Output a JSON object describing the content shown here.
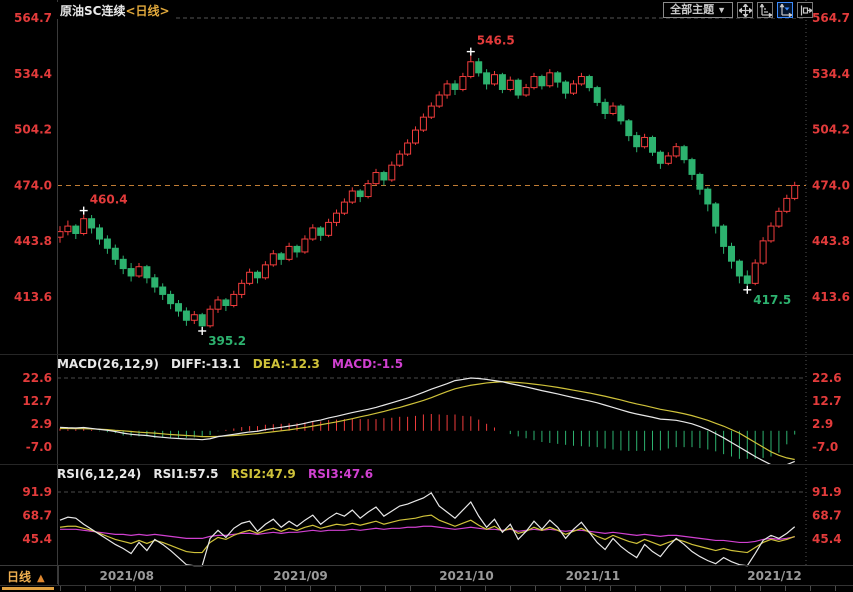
{
  "header": {
    "title": "原油SC连续",
    "period_tag": "<日线>"
  },
  "toolbar": {
    "themes_label": "全部主题",
    "themes_caret": "▼",
    "icons": [
      "move-icon",
      "axis-scale-icon",
      "axis-latest-icon",
      "exit-right-icon"
    ]
  },
  "macd_panel": {
    "name": "MACD(26,12,9)",
    "diff_label": "DIFF:-13.1",
    "dea_label": "DEA:-12.3",
    "macd_label": "MACD:-1.5"
  },
  "rsi_panel": {
    "name": "RSI(6,12,24)",
    "rsi1_label": "RSI1:57.5",
    "rsi2_label": "RSI2:47.9",
    "rsi3_label": "RSI3:47.6"
  },
  "bottom_bar": {
    "tab_label": "日线",
    "tab_caret": "▲"
  },
  "colors": {
    "up": "#f03c3c",
    "down": "#2db26f",
    "axis_text": "#e23b3b",
    "diff_line": "#e8e8e8",
    "dea_line": "#cfc23a",
    "rsi1": "#e8e8e8",
    "rsi2": "#cfc23a",
    "rsi3": "#d040d0",
    "last_price_line": "#c07c34",
    "grid_dash": "#555555",
    "date_text": "#999999",
    "annotation_high": "#e23b3b",
    "annotation_low": "#2db26f",
    "cross_marker": "#ffffff"
  },
  "chart_data": {
    "type": "candlestick",
    "title": "原油SC连续 日线 (crude oil SC continuous, daily)",
    "panels": [
      "price",
      "MACD",
      "RSI"
    ],
    "price_axis": {
      "ticks": [
        564.7,
        534.4,
        504.2,
        474.0,
        443.8,
        413.6
      ],
      "last_price": 474.0
    },
    "macd_axis": {
      "ticks": [
        22.6,
        12.7,
        2.9,
        -7.0
      ]
    },
    "rsi_axis": {
      "ticks": [
        91.9,
        68.7,
        45.4
      ]
    },
    "x_axis": {
      "month_labels": [
        "2021/08",
        "2021/09",
        "2021/10",
        "2021/11",
        "2021/12"
      ],
      "month_start_indices": [
        5,
        27,
        48,
        64,
        87
      ]
    },
    "annotations": [
      {
        "index": 3,
        "price": 460.4,
        "kind": "high",
        "label": "460.4"
      },
      {
        "index": 18,
        "price": 395.2,
        "kind": "low",
        "label": "395.2"
      },
      {
        "index": 52,
        "price": 546.5,
        "kind": "high",
        "label": "546.5"
      },
      {
        "index": 87,
        "price": 417.5,
        "kind": "low",
        "label": "417.5"
      }
    ],
    "candles": [
      [
        446,
        452,
        443,
        449
      ],
      [
        449,
        455,
        447,
        452
      ],
      [
        452,
        453,
        445,
        448
      ],
      [
        448,
        460.4,
        447,
        456
      ],
      [
        456,
        458,
        448,
        451
      ],
      [
        451,
        453,
        442,
        445
      ],
      [
        445,
        447,
        437,
        440
      ],
      [
        440,
        442,
        431,
        434
      ],
      [
        434,
        436,
        426,
        429
      ],
      [
        429,
        432,
        422,
        425
      ],
      [
        425,
        432,
        424,
        430
      ],
      [
        430,
        431,
        421,
        424
      ],
      [
        424,
        426,
        416,
        419
      ],
      [
        419,
        421,
        412,
        415
      ],
      [
        415,
        417,
        407,
        410
      ],
      [
        410,
        412,
        403,
        406
      ],
      [
        406,
        408,
        398,
        401
      ],
      [
        401,
        406,
        399,
        404
      ],
      [
        404,
        405,
        395.2,
        398
      ],
      [
        398,
        409,
        397,
        407
      ],
      [
        407,
        414,
        405,
        412
      ],
      [
        412,
        413,
        406,
        409
      ],
      [
        409,
        417,
        408,
        415
      ],
      [
        415,
        423,
        413,
        421
      ],
      [
        421,
        429,
        420,
        427
      ],
      [
        427,
        428,
        421,
        424
      ],
      [
        424,
        433,
        423,
        431
      ],
      [
        431,
        439,
        430,
        437
      ],
      [
        437,
        438,
        431,
        434
      ],
      [
        434,
        443,
        433,
        441
      ],
      [
        441,
        442,
        435,
        438
      ],
      [
        438,
        447,
        437,
        445
      ],
      [
        445,
        453,
        444,
        451
      ],
      [
        451,
        452,
        444,
        447
      ],
      [
        447,
        456,
        446,
        454
      ],
      [
        454,
        461,
        452,
        459
      ],
      [
        459,
        467,
        458,
        465
      ],
      [
        465,
        473,
        464,
        471
      ],
      [
        471,
        472,
        465,
        468
      ],
      [
        468,
        477,
        467,
        475
      ],
      [
        475,
        483,
        474,
        481
      ],
      [
        481,
        482,
        474,
        477
      ],
      [
        477,
        487,
        476,
        485
      ],
      [
        485,
        493,
        484,
        491
      ],
      [
        491,
        499,
        490,
        497
      ],
      [
        497,
        506,
        496,
        504
      ],
      [
        504,
        513,
        503,
        511
      ],
      [
        511,
        519,
        510,
        517
      ],
      [
        517,
        525,
        516,
        523
      ],
      [
        523,
        531,
        521,
        529
      ],
      [
        529,
        531,
        523,
        526
      ],
      [
        526,
        535,
        525,
        533
      ],
      [
        533,
        546.5,
        532,
        541
      ],
      [
        541,
        543,
        533,
        535
      ],
      [
        535,
        537,
        526,
        529
      ],
      [
        529,
        536,
        528,
        534
      ],
      [
        534,
        535,
        524,
        526
      ],
      [
        526,
        533,
        525,
        531
      ],
      [
        531,
        532,
        521,
        523
      ],
      [
        523,
        529,
        522,
        527
      ],
      [
        527,
        535,
        526,
        533
      ],
      [
        533,
        534,
        526,
        528
      ],
      [
        528,
        537,
        527,
        535
      ],
      [
        535,
        536,
        527,
        530
      ],
      [
        530,
        531,
        521,
        524
      ],
      [
        524,
        531,
        523,
        529
      ],
      [
        529,
        535,
        528,
        533
      ],
      [
        533,
        534,
        525,
        527
      ],
      [
        527,
        528,
        517,
        519
      ],
      [
        519,
        521,
        510,
        513
      ],
      [
        513,
        519,
        512,
        517
      ],
      [
        517,
        518,
        507,
        509
      ],
      [
        509,
        510,
        498,
        501
      ],
      [
        501,
        503,
        492,
        495
      ],
      [
        495,
        502,
        494,
        500
      ],
      [
        500,
        501,
        490,
        492
      ],
      [
        492,
        493,
        483,
        486
      ],
      [
        486,
        492,
        485,
        490
      ],
      [
        490,
        497,
        489,
        495
      ],
      [
        495,
        496,
        486,
        488
      ],
      [
        488,
        489,
        477,
        480
      ],
      [
        480,
        481,
        469,
        472
      ],
      [
        472,
        473,
        460,
        464
      ],
      [
        464,
        465,
        448,
        452
      ],
      [
        452,
        453,
        437,
        441
      ],
      [
        441,
        443,
        429,
        433
      ],
      [
        433,
        434,
        421,
        425
      ],
      [
        425,
        428,
        417.5,
        421
      ],
      [
        421,
        434,
        420,
        432
      ],
      [
        432,
        446,
        431,
        444
      ],
      [
        444,
        454,
        443,
        452
      ],
      [
        452,
        462,
        451,
        460
      ],
      [
        460,
        469,
        459,
        467
      ],
      [
        467,
        476,
        466,
        474
      ]
    ],
    "macd": {
      "params": [
        26,
        12,
        9
      ],
      "diff_value": -13.1,
      "dea_value": -12.3,
      "macd_value": -1.5,
      "diff": [
        1.5,
        1.3,
        1.2,
        1.4,
        1.0,
        0.6,
        0.2,
        -0.3,
        -1.0,
        -1.5,
        -1.8,
        -2.0,
        -2.5,
        -2.8,
        -3.1,
        -3.3,
        -3.5,
        -3.6,
        -3.8,
        -3.4,
        -2.5,
        -2.0,
        -1.5,
        -1.0,
        -0.5,
        -0.2,
        0.5,
        1.0,
        1.5,
        2.0,
        2.5,
        3.2,
        4.0,
        4.6,
        5.5,
        6.2,
        7.0,
        7.8,
        8.5,
        9.2,
        10.0,
        11.0,
        12.0,
        13.0,
        14.0,
        15.2,
        16.5,
        17.8,
        19.0,
        20.2,
        21.5,
        22.0,
        22.6,
        22.4,
        22.0,
        21.5,
        21.0,
        20.2,
        19.5,
        18.8,
        18.0,
        17.2,
        16.5,
        15.8,
        15.0,
        14.2,
        13.5,
        12.8,
        12.0,
        11.0,
        10.0,
        9.0,
        8.0,
        7.2,
        6.5,
        5.8,
        5.0,
        4.8,
        4.5,
        3.8,
        3.0,
        1.8,
        0.5,
        -1.2,
        -3.0,
        -5.0,
        -7.0,
        -9.0,
        -11.0,
        -12.8,
        -14.5,
        -15.2,
        -14.5,
        -13.1
      ],
      "dea": [
        1.0,
        1.0,
        0.9,
        0.9,
        0.8,
        0.7,
        0.5,
        0.2,
        0.0,
        -0.3,
        -0.6,
        -0.8,
        -1.0,
        -1.3,
        -1.6,
        -1.8,
        -2.0,
        -2.2,
        -2.5,
        -2.5,
        -2.4,
        -2.2,
        -2.0,
        -1.8,
        -1.5,
        -1.2,
        -0.8,
        -0.4,
        0.0,
        0.4,
        0.9,
        1.4,
        2.0,
        2.6,
        3.2,
        3.8,
        4.5,
        5.2,
        6.0,
        6.7,
        7.5,
        8.3,
        9.2,
        10.0,
        11.0,
        12.0,
        13.0,
        14.2,
        15.5,
        16.8,
        18.0,
        18.8,
        19.5,
        20.0,
        20.5,
        20.8,
        21.0,
        20.9,
        20.7,
        20.4,
        20.0,
        19.6,
        19.1,
        18.6,
        18.0,
        17.4,
        16.8,
        16.2,
        15.5,
        14.8,
        14.0,
        13.2,
        12.3,
        11.5,
        10.8,
        10.0,
        9.2,
        8.6,
        8.0,
        7.3,
        6.5,
        5.5,
        4.5,
        3.2,
        2.0,
        0.5,
        -1.0,
        -3.0,
        -5.0,
        -7.0,
        -9.0,
        -10.5,
        -11.6,
        -12.3
      ]
    },
    "rsi": {
      "params": [
        6,
        12,
        24
      ],
      "rsi1_value": 57.5,
      "rsi2_value": 47.9,
      "rsi3_value": 47.6,
      "r1": [
        64,
        67,
        66,
        60,
        55,
        50,
        45,
        40,
        36,
        31,
        42,
        34,
        45,
        40,
        34,
        27,
        20,
        19,
        19,
        46,
        54,
        47,
        56,
        61,
        63,
        53,
        60,
        65,
        57,
        63,
        58,
        64,
        69,
        60,
        66,
        71,
        68,
        74,
        66,
        72,
        77,
        68,
        73,
        78,
        80,
        83,
        86,
        91,
        78,
        72,
        66,
        74,
        82,
        68,
        57,
        65,
        52,
        60,
        45,
        53,
        63,
        55,
        64,
        57,
        46,
        55,
        62,
        52,
        42,
        35,
        46,
        38,
        32,
        27,
        40,
        33,
        28,
        38,
        46,
        40,
        33,
        28,
        24,
        21,
        27,
        23,
        20,
        19,
        31,
        44,
        49,
        46,
        51,
        57.5
      ],
      "r2": [
        57,
        58,
        58,
        56,
        54,
        51,
        48,
        45,
        43,
        41,
        44,
        41,
        44,
        42,
        39,
        36,
        33,
        32,
        32,
        42,
        47,
        45,
        49,
        52,
        54,
        51,
        54,
        56,
        53,
        56,
        54,
        57,
        59,
        56,
        58,
        60,
        59,
        61,
        59,
        61,
        63,
        60,
        62,
        64,
        65,
        66,
        68,
        69,
        64,
        61,
        58,
        61,
        64,
        59,
        55,
        58,
        53,
        56,
        51,
        53,
        57,
        54,
        57,
        54,
        50,
        53,
        56,
        52,
        48,
        45,
        49,
        46,
        43,
        41,
        45,
        42,
        39,
        42,
        45,
        43,
        40,
        38,
        36,
        34,
        36,
        34,
        33,
        32,
        37,
        42,
        45,
        43,
        45,
        47.9
      ],
      "r3": [
        55,
        55,
        55,
        54,
        53,
        52,
        51,
        50,
        50,
        49,
        50,
        49,
        50,
        49,
        48,
        47,
        46,
        46,
        46,
        48,
        49,
        49,
        50,
        51,
        51,
        50,
        51,
        52,
        51,
        52,
        52,
        53,
        54,
        53,
        54,
        54,
        54,
        55,
        54,
        55,
        56,
        55,
        56,
        56,
        57,
        57,
        58,
        58,
        57,
        56,
        55,
        56,
        57,
        56,
        55,
        55,
        54,
        55,
        53,
        54,
        55,
        54,
        55,
        54,
        53,
        54,
        54,
        53,
        52,
        51,
        52,
        51,
        50,
        49,
        50,
        49,
        48,
        49,
        49,
        48,
        47,
        46,
        45,
        44,
        44,
        43,
        42,
        42,
        43,
        45,
        46,
        45,
        46,
        47.6
      ]
    }
  }
}
